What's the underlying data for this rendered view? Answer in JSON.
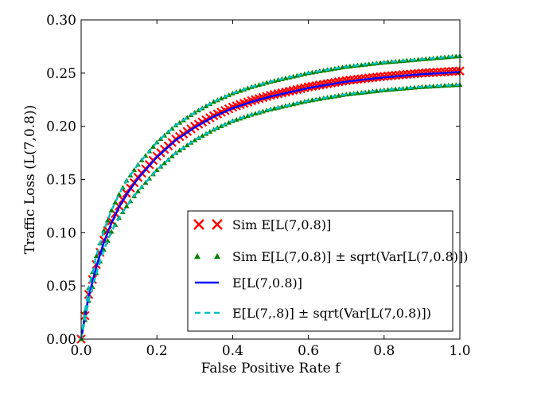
{
  "chart_data": {
    "type": "line",
    "xlabel": "False Positive Rate f",
    "ylabel": "Traffic Loss (L(7,0.8))",
    "xlim": [
      0.0,
      1.0
    ],
    "ylim": [
      0.0,
      0.3
    ],
    "x_ticks": [
      "0.0",
      "0.2",
      "0.4",
      "0.6",
      "0.8",
      "1.0"
    ],
    "y_ticks": [
      "0.00",
      "0.05",
      "0.10",
      "0.15",
      "0.20",
      "0.25",
      "0.30"
    ],
    "legend_position": "lower-right",
    "x": [
      0.0,
      0.01,
      0.02,
      0.04,
      0.06,
      0.08,
      0.1,
      0.12,
      0.15,
      0.2,
      0.25,
      0.3,
      0.35,
      0.4,
      0.45,
      0.5,
      0.6,
      0.7,
      0.8,
      0.9,
      1.0
    ],
    "series": [
      {
        "name": "Sim E[L(7,0.8)]",
        "style": "red-x-markers",
        "color": "#ff0000",
        "values": [
          0.0,
          0.022,
          0.042,
          0.07,
          0.093,
          0.111,
          0.125,
          0.137,
          0.152,
          0.172,
          0.188,
          0.2,
          0.21,
          0.218,
          0.224,
          0.229,
          0.237,
          0.243,
          0.247,
          0.25,
          0.252
        ]
      },
      {
        "name": "Sim E[L(7,0.8)] ± sqrt(Var[L(7,0.8)]) (upper)",
        "style": "green-triangle-markers",
        "color": "#008000",
        "values": [
          0.0,
          0.026,
          0.048,
          0.078,
          0.102,
          0.121,
          0.136,
          0.149,
          0.164,
          0.185,
          0.201,
          0.213,
          0.223,
          0.231,
          0.237,
          0.242,
          0.25,
          0.256,
          0.26,
          0.263,
          0.266
        ]
      },
      {
        "name": "Sim E[L(7,0.8)] ± sqrt(Var[L(7,0.8)]) (lower)",
        "style": "green-triangle-markers",
        "color": "#008000",
        "values": [
          0.0,
          0.018,
          0.036,
          0.062,
          0.084,
          0.101,
          0.114,
          0.125,
          0.139,
          0.159,
          0.175,
          0.187,
          0.197,
          0.205,
          0.211,
          0.216,
          0.224,
          0.23,
          0.234,
          0.237,
          0.239
        ]
      },
      {
        "name": "E[L(7,0.8)]",
        "style": "blue-solid-line",
        "color": "#0000ff",
        "values": [
          0.0,
          0.021,
          0.04,
          0.068,
          0.091,
          0.109,
          0.124,
          0.136,
          0.151,
          0.171,
          0.187,
          0.199,
          0.209,
          0.217,
          0.223,
          0.228,
          0.236,
          0.242,
          0.246,
          0.249,
          0.251
        ]
      },
      {
        "name": "E[L(7,.8)] ± sqrt(Var[L(7,0.8)]) (upper)",
        "style": "cyan-dashed-line",
        "color": "#00bfbf",
        "values": [
          0.0,
          0.026,
          0.048,
          0.078,
          0.102,
          0.121,
          0.136,
          0.149,
          0.164,
          0.185,
          0.201,
          0.213,
          0.223,
          0.231,
          0.237,
          0.242,
          0.25,
          0.256,
          0.26,
          0.263,
          0.266
        ]
      },
      {
        "name": "E[L(7,.8)] ± sqrt(Var[L(7,0.8)]) (lower)",
        "style": "cyan-dashed-line",
        "color": "#00bfbf",
        "values": [
          0.0,
          0.018,
          0.036,
          0.062,
          0.084,
          0.101,
          0.114,
          0.125,
          0.139,
          0.159,
          0.175,
          0.187,
          0.197,
          0.205,
          0.211,
          0.216,
          0.224,
          0.23,
          0.234,
          0.237,
          0.239
        ]
      }
    ],
    "legend": [
      "Sim E[L(7,0.8)]",
      "Sim E[L(7,0.8)] ± sqrt(Var[L(7,0.8)])",
      "E[L(7,0.8)]",
      "E[L(7,.8)] ± sqrt(Var[L(7,0.8)])"
    ]
  }
}
